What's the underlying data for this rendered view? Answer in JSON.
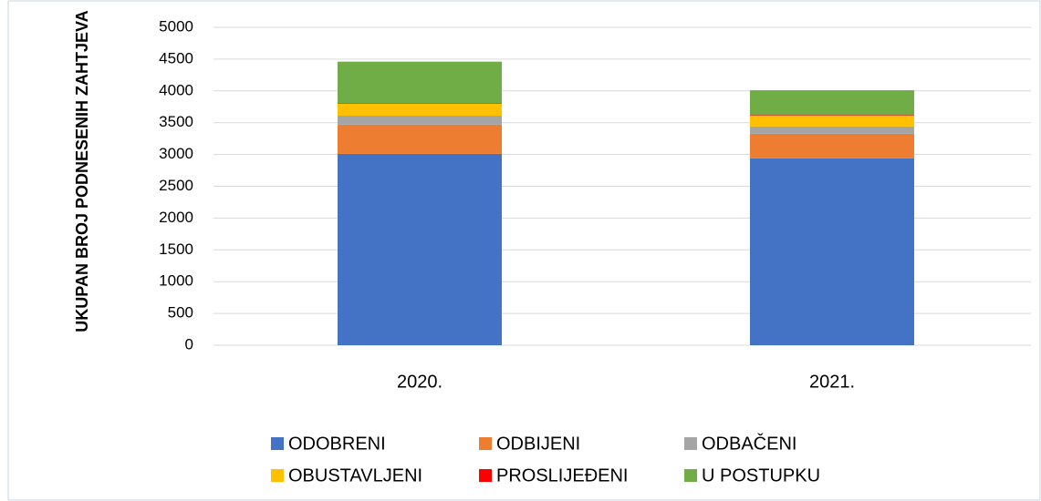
{
  "chart_data": {
    "type": "stacked_bar",
    "y_label": "UKUPAN BROJ PODNESENIH ZAHTJEVA",
    "categories": [
      "2020.",
      "2021."
    ],
    "series": [
      {
        "name": "ODOBRENI",
        "color": "#4472c4",
        "values": [
          3010,
          2940
        ]
      },
      {
        "name": "ODBIJENI",
        "color": "#ed7d31",
        "values": [
          460,
          385
        ]
      },
      {
        "name": "ODBAČENI",
        "color": "#a5a5a5",
        "values": [
          140,
          115
        ]
      },
      {
        "name": "OBUSTAVLJENI",
        "color": "#ffc000",
        "values": [
          190,
          170
        ]
      },
      {
        "name": "PROSLIJEĐENI",
        "color": "#ff0000",
        "values": [
          10,
          10
        ]
      },
      {
        "name": "U POSTUPKU",
        "color": "#70ad47",
        "values": [
          650,
          390
        ]
      }
    ],
    "ylim": [
      0,
      5000
    ],
    "yticks": [
      0,
      500,
      1000,
      1500,
      2000,
      2500,
      3000,
      3500,
      4000,
      4500,
      5000
    ],
    "grid": true,
    "legend": "bottom"
  }
}
